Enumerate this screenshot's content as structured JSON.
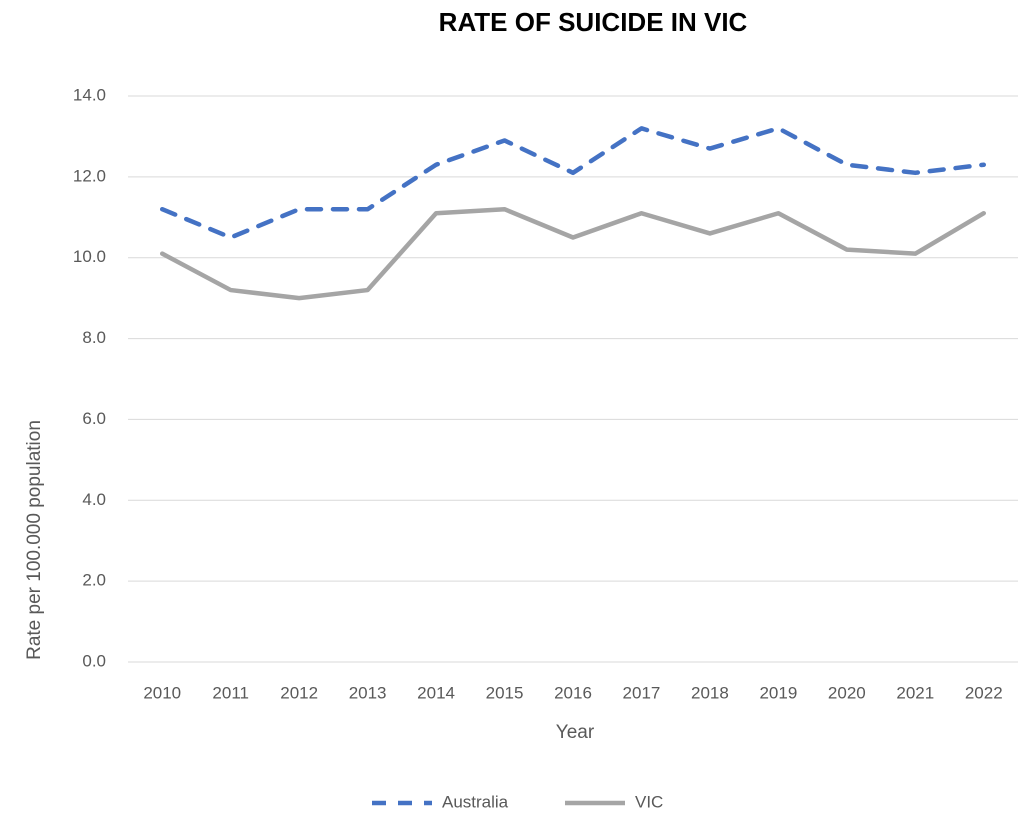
{
  "chart_data": {
    "type": "line",
    "title": "RATE OF SUICIDE IN VIC",
    "x_label": "Year",
    "y_label": "Rate per 100.000 population",
    "categories": [
      "2010",
      "2011",
      "2012",
      "2013",
      "2014",
      "2015",
      "2016",
      "2017",
      "2018",
      "2019",
      "2020",
      "2021",
      "2022"
    ],
    "series": [
      {
        "name": "Australia",
        "color": "#4472c4",
        "dash": true,
        "values": [
          11.2,
          10.5,
          11.2,
          11.2,
          12.3,
          12.9,
          12.1,
          13.2,
          12.7,
          13.2,
          12.3,
          12.1,
          12.3
        ]
      },
      {
        "name": "VIC",
        "color": "#a5a5a5",
        "dash": false,
        "values": [
          10.1,
          9.2,
          9.0,
          9.2,
          11.1,
          11.2,
          10.5,
          11.1,
          10.6,
          11.1,
          10.2,
          10.1,
          11.1
        ]
      }
    ],
    "ylim": [
      0,
      14
    ],
    "yticks": [
      {
        "value": 0,
        "label": "0.0"
      },
      {
        "value": 2,
        "label": "2.0"
      },
      {
        "value": 4,
        "label": "4.0"
      },
      {
        "value": 6,
        "label": "6.0"
      },
      {
        "value": 8,
        "label": "8.0"
      },
      {
        "value": 10,
        "label": "10.0"
      },
      {
        "value": 12,
        "label": "12.0"
      },
      {
        "value": 14,
        "label": "14.0"
      }
    ],
    "grid": true,
    "legend": "bottom"
  }
}
